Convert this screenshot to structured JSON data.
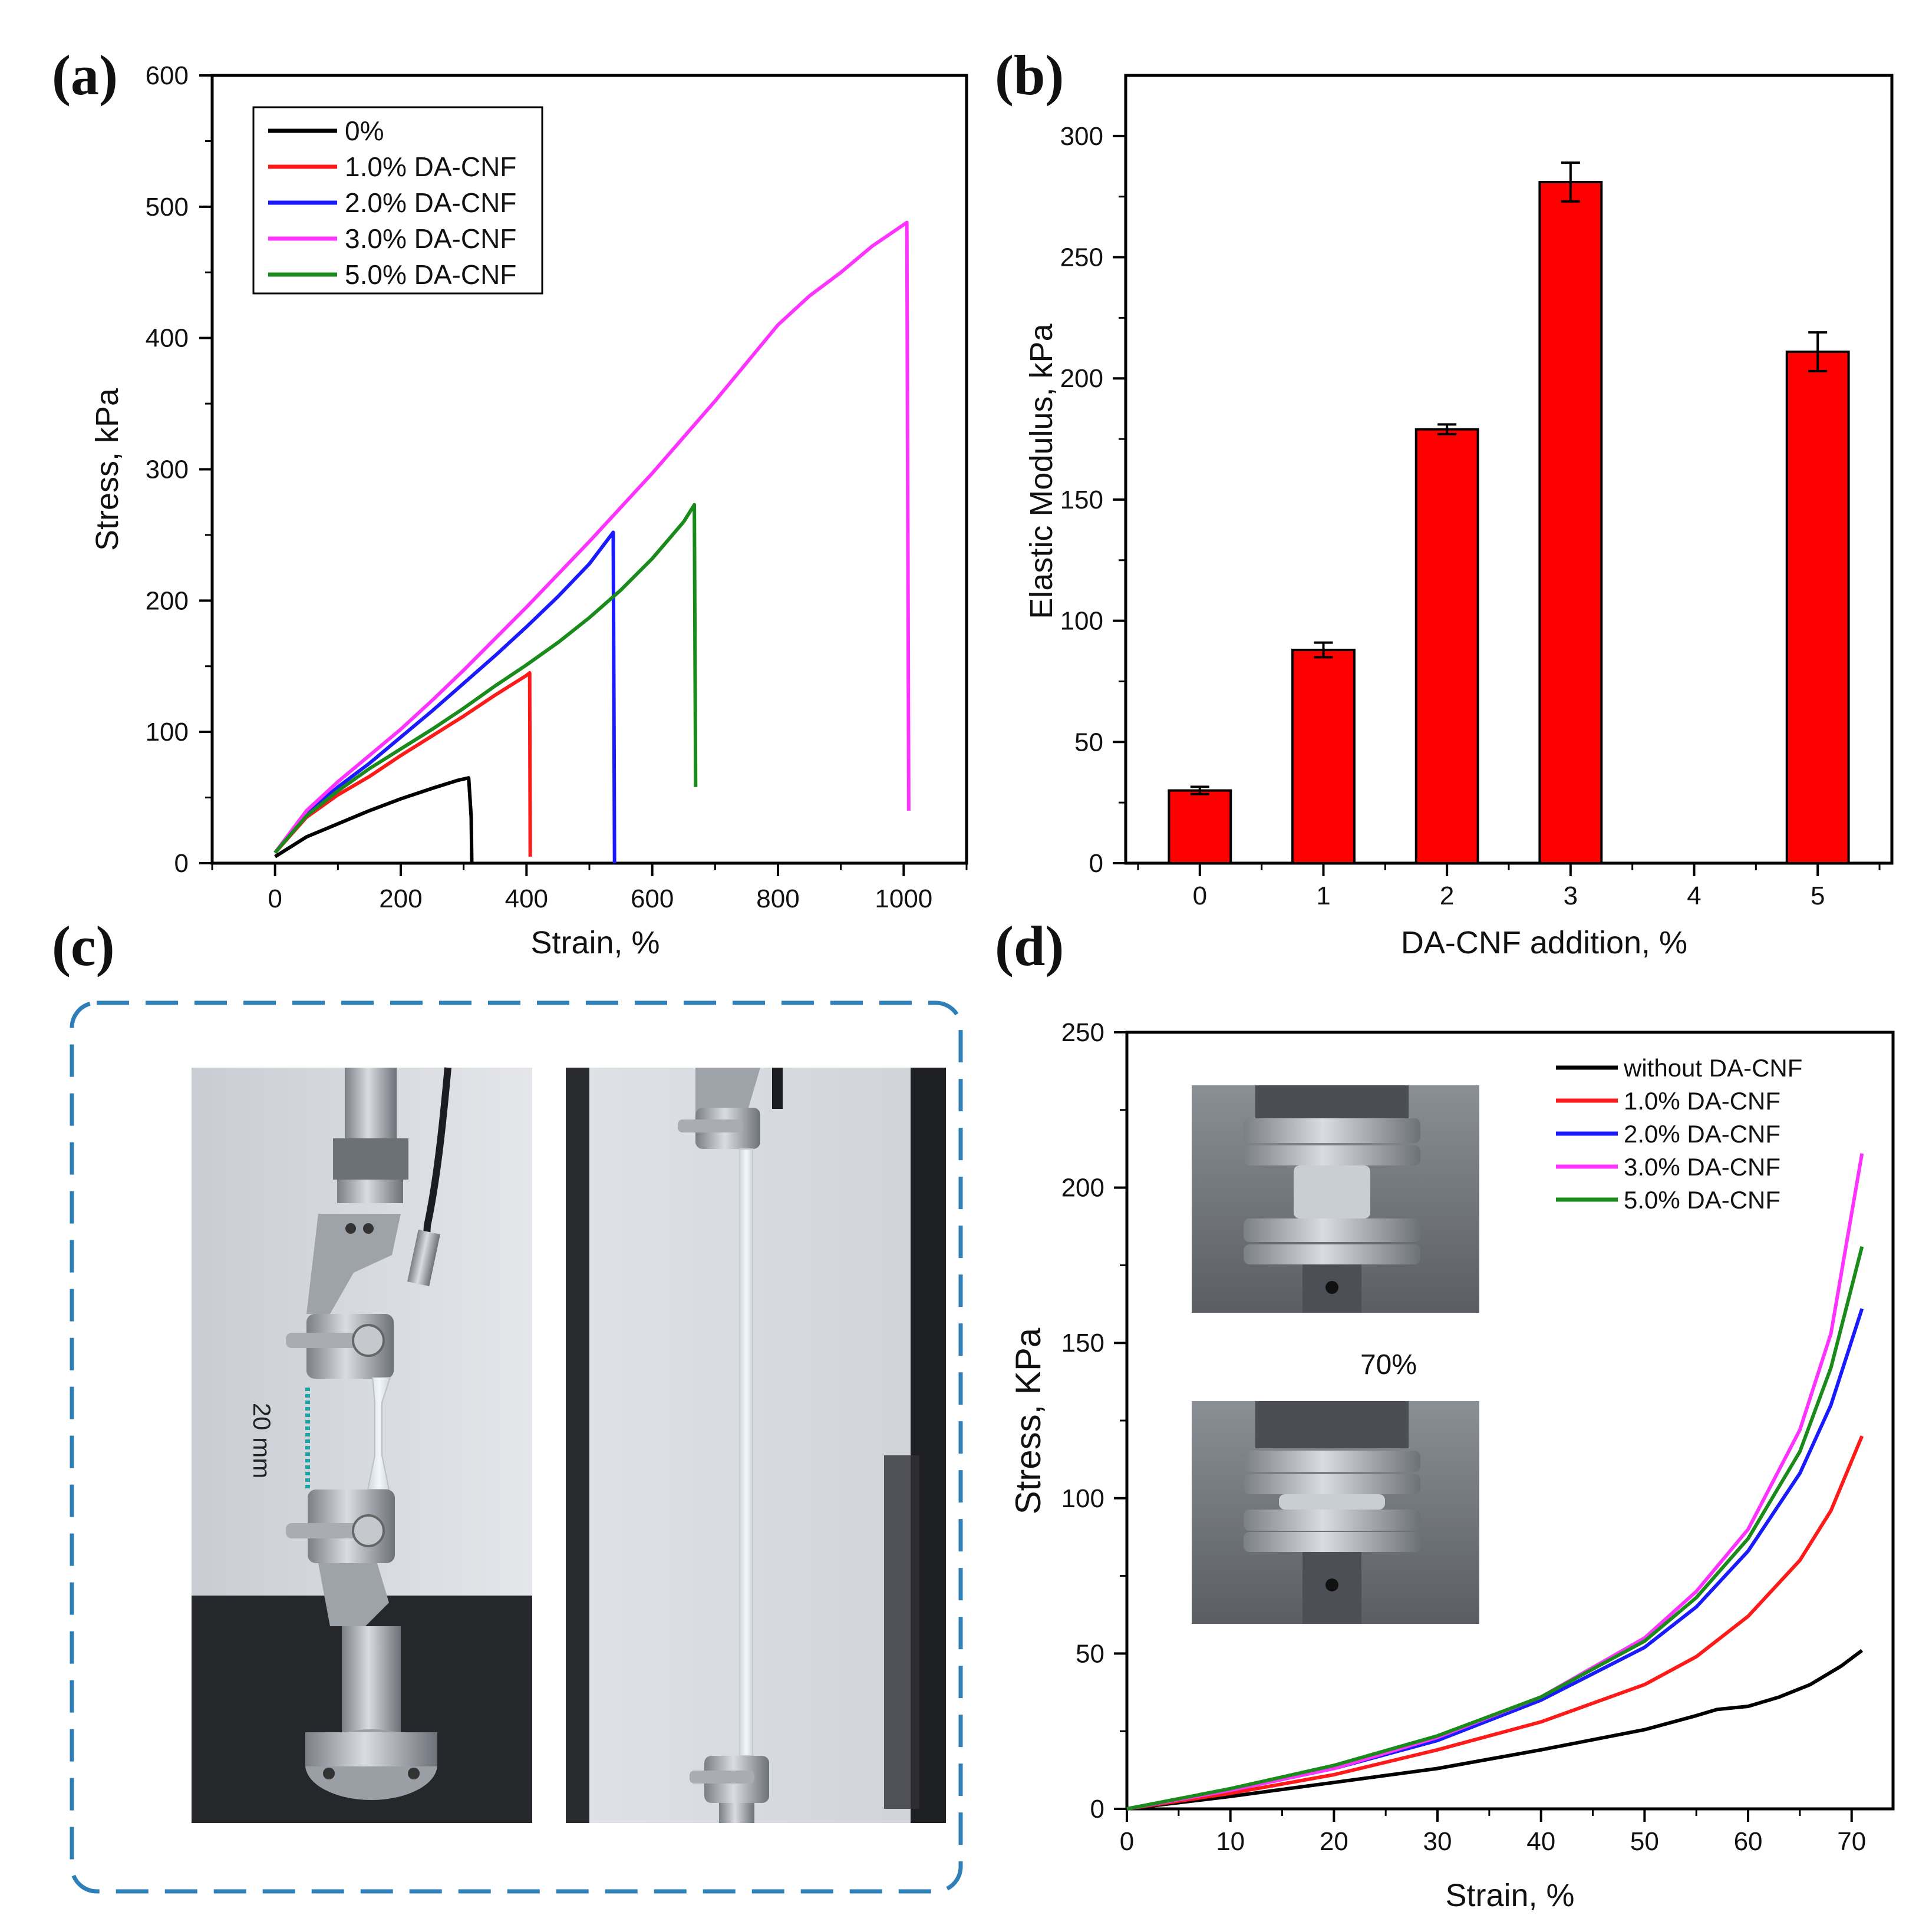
{
  "panel_labels": {
    "a": "(a)",
    "b": "(b)",
    "c": "(c)",
    "d": "(d)"
  },
  "colors": {
    "black": "#000000",
    "red": "#ff1a1a",
    "blue": "#1a1aff",
    "magenta": "#ff33ff",
    "green": "#1a8a1a",
    "bar_fill": "#ff0000",
    "dashed_border": "#2e7fb8"
  },
  "chart_data": [
    {
      "panel": "a",
      "type": "line",
      "xlabel": "Strain, %",
      "ylabel": "Stress, kPa",
      "xlim": [
        -100,
        1100
      ],
      "ylim": [
        0,
        600
      ],
      "xticks": [
        "0",
        "200",
        "400",
        "600",
        "800",
        "1000"
      ],
      "yticks": [
        "0",
        "100",
        "200",
        "300",
        "400",
        "500",
        "600"
      ],
      "legend_position": "top-left",
      "series": [
        {
          "name": "0%",
          "color": "#000000",
          "points": [
            [
              0,
              5
            ],
            [
              50,
              20
            ],
            [
              100,
              30
            ],
            [
              150,
              40
            ],
            [
              200,
              49
            ],
            [
              250,
              57
            ],
            [
              290,
              63
            ],
            [
              308,
              65
            ],
            [
              312,
              35
            ],
            [
              313,
              0
            ]
          ]
        },
        {
          "name": "1.0% DA-CNF",
          "color": "#ff1a1a",
          "points": [
            [
              0,
              8
            ],
            [
              50,
              35
            ],
            [
              100,
              52
            ],
            [
              150,
              66
            ],
            [
              200,
              82
            ],
            [
              250,
              97
            ],
            [
              300,
              112
            ],
            [
              350,
              128
            ],
            [
              400,
              143
            ],
            [
              405,
              145
            ],
            [
              406,
              5
            ]
          ]
        },
        {
          "name": "2.0% DA-CNF",
          "color": "#1a1aff",
          "points": [
            [
              0,
              8
            ],
            [
              50,
              38
            ],
            [
              100,
              58
            ],
            [
              150,
              76
            ],
            [
              200,
              96
            ],
            [
              250,
              116
            ],
            [
              300,
              137
            ],
            [
              350,
              158
            ],
            [
              400,
              180
            ],
            [
              450,
              203
            ],
            [
              500,
              228
            ],
            [
              538,
              252
            ],
            [
              540,
              0
            ]
          ]
        },
        {
          "name": "3.0% DA-CNF",
          "color": "#ff33ff",
          "points": [
            [
              0,
              8
            ],
            [
              50,
              40
            ],
            [
              100,
              62
            ],
            [
              150,
              82
            ],
            [
              200,
              102
            ],
            [
              250,
              124
            ],
            [
              300,
              147
            ],
            [
              400,
              195
            ],
            [
              500,
              245
            ],
            [
              600,
              297
            ],
            [
              700,
              352
            ],
            [
              800,
              410
            ],
            [
              850,
              432
            ],
            [
              900,
              450
            ],
            [
              950,
              470
            ],
            [
              1005,
              488
            ],
            [
              1008,
              40
            ]
          ]
        },
        {
          "name": "5.0% DA-CNF",
          "color": "#1a8a1a",
          "points": [
            [
              0,
              8
            ],
            [
              50,
              36
            ],
            [
              100,
              55
            ],
            [
              150,
              72
            ],
            [
              200,
              87
            ],
            [
              250,
              102
            ],
            [
              300,
              118
            ],
            [
              350,
              135
            ],
            [
              400,
              151
            ],
            [
              450,
              168
            ],
            [
              500,
              187
            ],
            [
              550,
              208
            ],
            [
              600,
              232
            ],
            [
              650,
              260
            ],
            [
              667,
              273
            ],
            [
              669,
              58
            ]
          ]
        }
      ]
    },
    {
      "panel": "b",
      "type": "bar",
      "xlabel": "DA-CNF addition, %",
      "ylabel": "Elastic Modulus, kPa",
      "ylim": [
        0,
        325
      ],
      "xlim": [
        -0.6,
        5.6
      ],
      "xticks": [
        "0",
        "1",
        "2",
        "3",
        "4",
        "5"
      ],
      "yticks": [
        "0",
        "50",
        "100",
        "150",
        "200",
        "250",
        "300"
      ],
      "categories": [
        0,
        1,
        2,
        3,
        5
      ],
      "values": [
        30,
        88,
        179,
        281,
        211
      ],
      "errors": [
        1.5,
        3,
        2,
        8,
        8
      ]
    },
    {
      "panel": "d",
      "type": "line",
      "xlabel": "Strain, %",
      "ylabel": "Stress, KPa",
      "xlim": [
        0,
        74
      ],
      "ylim": [
        0,
        250
      ],
      "xticks": [
        "0",
        "10",
        "20",
        "30",
        "40",
        "50",
        "60",
        "70"
      ],
      "yticks": [
        "0",
        "50",
        "100",
        "150",
        "200",
        "250"
      ],
      "legend_position": "top-right",
      "inset_label": "70%",
      "series": [
        {
          "name": "without DA-CNF",
          "color": "#000000",
          "points": [
            [
              0,
              0
            ],
            [
              10,
              4
            ],
            [
              20,
              8.5
            ],
            [
              30,
              13
            ],
            [
              40,
              19
            ],
            [
              50,
              25.5
            ],
            [
              55,
              30
            ],
            [
              57,
              32
            ],
            [
              60,
              33
            ],
            [
              63,
              36
            ],
            [
              66,
              40
            ],
            [
              69,
              46
            ],
            [
              71,
              51
            ]
          ]
        },
        {
          "name": "1.0% DA-CNF",
          "color": "#ff1a1a",
          "points": [
            [
              0,
              0
            ],
            [
              10,
              5
            ],
            [
              20,
              11
            ],
            [
              30,
              19
            ],
            [
              40,
              28
            ],
            [
              50,
              40
            ],
            [
              55,
              49
            ],
            [
              60,
              62
            ],
            [
              65,
              80
            ],
            [
              68,
              96
            ],
            [
              71,
              120
            ]
          ]
        },
        {
          "name": "2.0% DA-CNF",
          "color": "#1a1aff",
          "points": [
            [
              0,
              0
            ],
            [
              10,
              6
            ],
            [
              20,
              13
            ],
            [
              30,
              22
            ],
            [
              40,
              35
            ],
            [
              50,
              52
            ],
            [
              55,
              65
            ],
            [
              60,
              83
            ],
            [
              65,
              108
            ],
            [
              68,
              130
            ],
            [
              71,
              161
            ]
          ]
        },
        {
          "name": "3.0% DA-CNF",
          "color": "#ff33ff",
          "points": [
            [
              0,
              0
            ],
            [
              10,
              6
            ],
            [
              20,
              13
            ],
            [
              30,
              23
            ],
            [
              40,
              36
            ],
            [
              50,
              55
            ],
            [
              55,
              70
            ],
            [
              60,
              90
            ],
            [
              65,
              122
            ],
            [
              68,
              153
            ],
            [
              71,
              211
            ]
          ]
        },
        {
          "name": "5.0% DA-CNF",
          "color": "#1a8a1a",
          "points": [
            [
              0,
              0
            ],
            [
              10,
              6.5
            ],
            [
              20,
              14
            ],
            [
              30,
              23.5
            ],
            [
              40,
              36
            ],
            [
              50,
              54
            ],
            [
              55,
              68
            ],
            [
              60,
              87
            ],
            [
              65,
              115
            ],
            [
              68,
              142
            ],
            [
              71,
              181
            ]
          ]
        }
      ]
    }
  ],
  "panel_c": {
    "scale_label": "20 mm"
  }
}
